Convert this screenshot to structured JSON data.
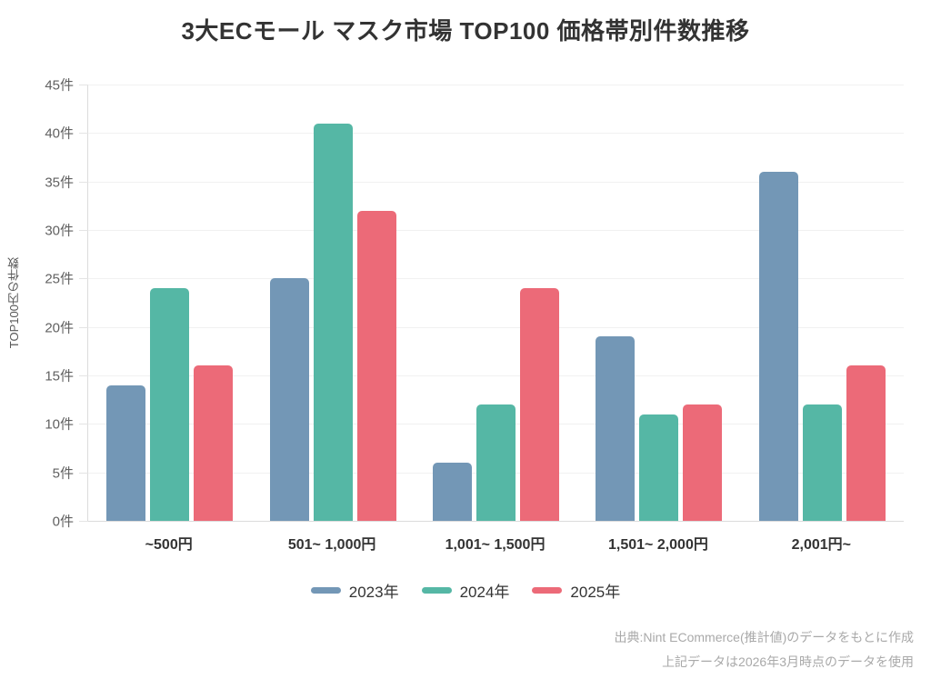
{
  "chart_data": {
    "type": "bar",
    "title": "3大ECモール マスク市場 TOP100 価格帯別件数推移",
    "ylabel": "TOP100内の件数",
    "xlabel": "",
    "ylim": [
      0,
      45
    ],
    "grid": true,
    "legend_position": "bottom",
    "categories": [
      "~500円",
      "501~ 1,000円",
      "1,001~ 1,500円",
      "1,501~ 2,000円",
      "2,001円~"
    ],
    "series": [
      {
        "name": "2023年",
        "color": "#7397B6",
        "values": [
          14,
          25,
          6,
          19,
          36
        ]
      },
      {
        "name": "2024年",
        "color": "#55B7A5",
        "values": [
          24,
          41,
          12,
          11,
          12
        ]
      },
      {
        "name": "2025年",
        "color": "#EC6A78",
        "values": [
          16,
          32,
          24,
          12,
          16
        ]
      }
    ],
    "y_ticks": [
      {
        "v": 0,
        "label": "0件"
      },
      {
        "v": 5,
        "label": "5件"
      },
      {
        "v": 10,
        "label": "10件"
      },
      {
        "v": 15,
        "label": "15件"
      },
      {
        "v": 20,
        "label": "20件"
      },
      {
        "v": 25,
        "label": "25件"
      },
      {
        "v": 30,
        "label": "30件"
      },
      {
        "v": 35,
        "label": "35件"
      },
      {
        "v": 40,
        "label": "40件"
      },
      {
        "v": 45,
        "label": "45件"
      }
    ],
    "unit_suffix": "件"
  },
  "source": {
    "line1": "出典:Nint ECommerce(推計値)のデータをもとに作成",
    "line2": "上記データは2026年3月時点のデータを使用"
  }
}
